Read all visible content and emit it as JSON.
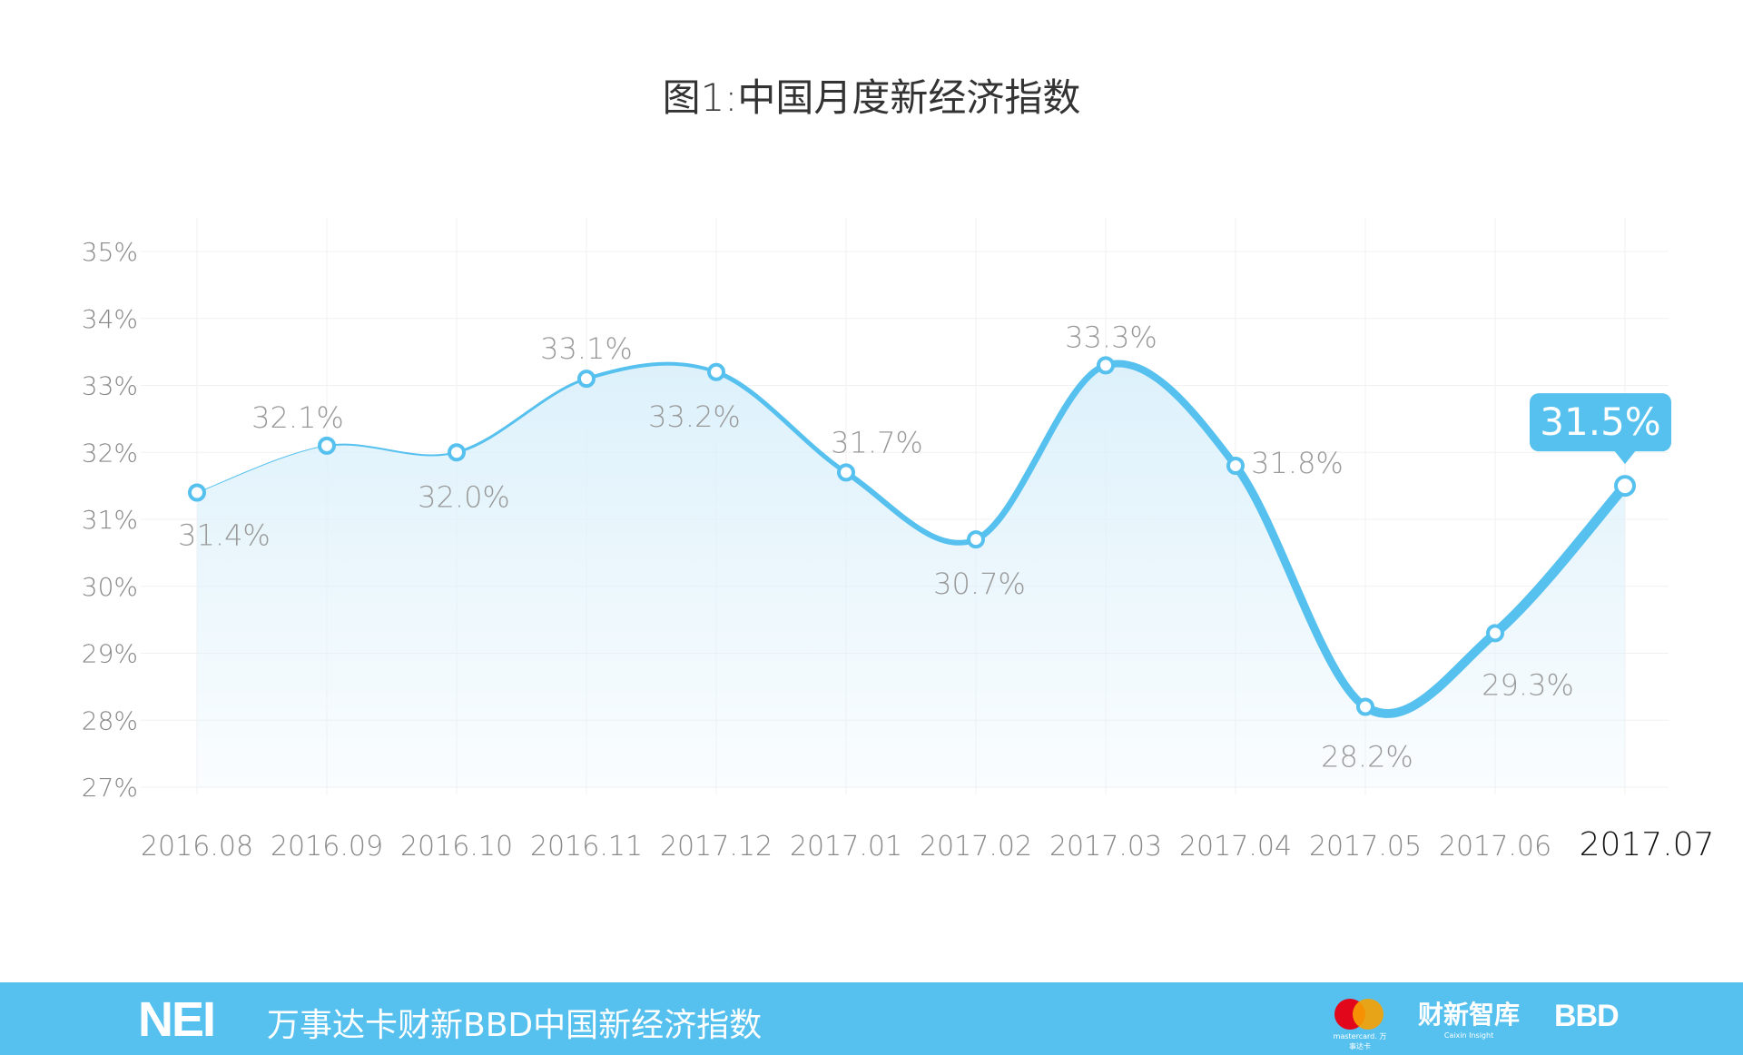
{
  "chart_data": {
    "type": "area",
    "title": "图1:中国月度新经济指数",
    "categories": [
      "2016.08",
      "2016.09",
      "2016.10",
      "2016.11",
      "2017.12",
      "2017.01",
      "2017.02",
      "2017.03",
      "2017.04",
      "2017.05",
      "2017.06",
      "2017.07"
    ],
    "values": [
      31.4,
      32.1,
      32.0,
      33.1,
      33.2,
      31.7,
      30.7,
      33.3,
      31.8,
      28.2,
      29.3,
      31.5
    ],
    "data_labels": [
      "31.4%",
      "32.1%",
      "32.0%",
      "33.1%",
      "33.2%",
      "31.7%",
      "30.7%",
      "33.3%",
      "31.8%",
      "28.2%",
      "29.3%",
      "31.5%"
    ],
    "y_ticks": [
      "35%",
      "34%",
      "33%",
      "32%",
      "31%",
      "30%",
      "29%",
      "28%",
      "27%"
    ],
    "ylim": [
      27,
      35
    ],
    "grid": true,
    "highlight": {
      "category": "2017.07",
      "label": "31.5%"
    },
    "colors": {
      "line": "#56C1EE",
      "fill": "#DDF1FB",
      "label": "#999999",
      "axis": "#888888",
      "highlight_tick": "#111111"
    }
  },
  "footer": {
    "logo": "NEI",
    "text": "万事达卡财新BBD中国新经济指数",
    "partner_logos": [
      {
        "name": "mastercard",
        "text": "mastercard. 万事达卡"
      },
      {
        "name": "caixin-insight",
        "text": "财新智库",
        "sub": "Caixin Insight"
      },
      {
        "name": "bbd",
        "text": "BBD"
      }
    ],
    "background": "#56C1EE"
  }
}
